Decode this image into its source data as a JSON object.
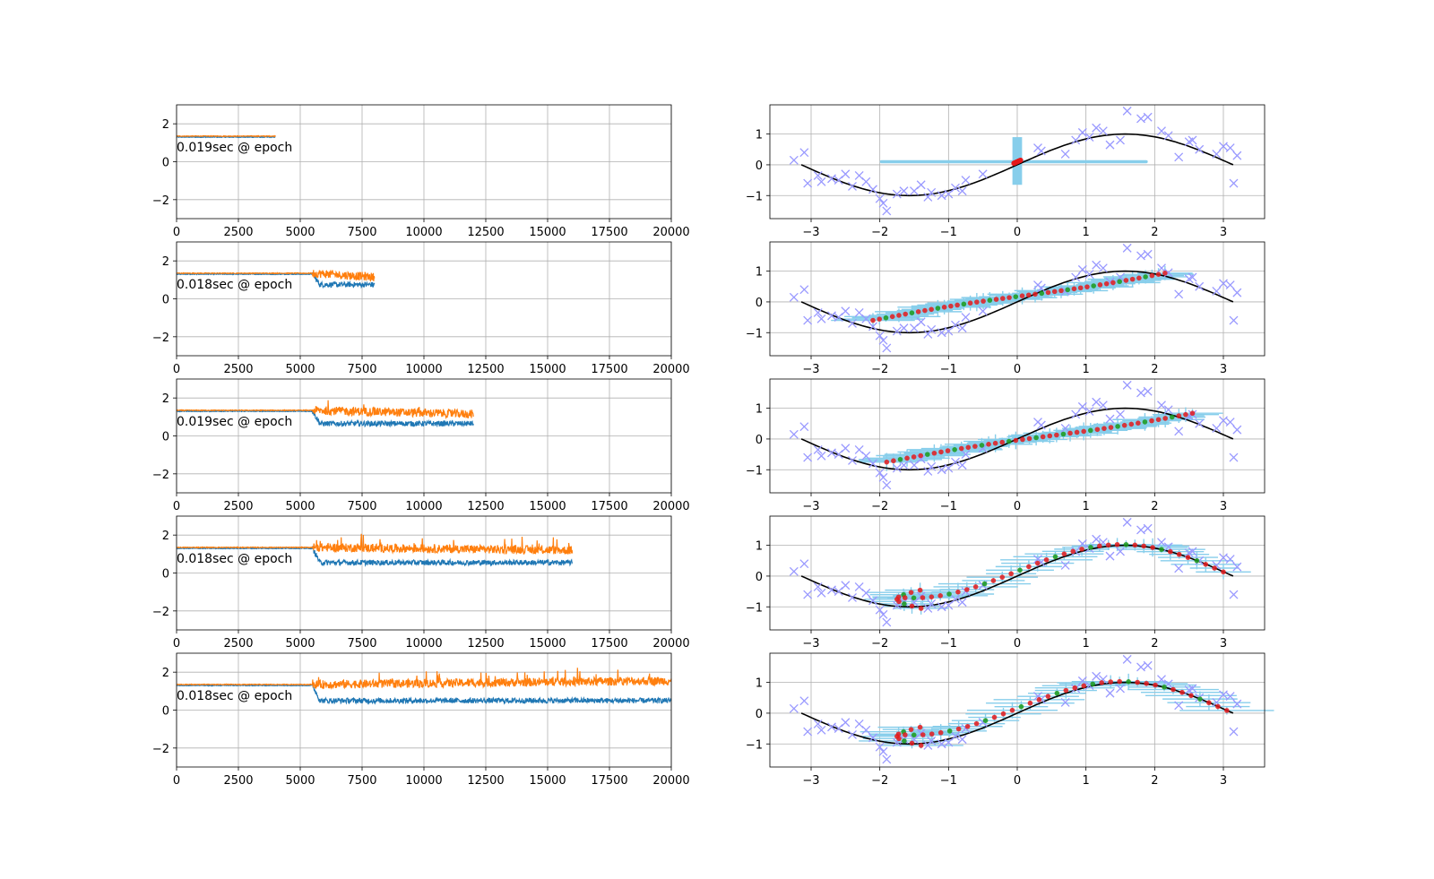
{
  "figure": {
    "layout": "5 rows x 2 columns"
  },
  "colors": {
    "train_loss": "#1f77b4",
    "val_loss": "#ff7f0e",
    "target_curve": "#000000",
    "observations": "#9999ff",
    "errorbars": "#87ceeb",
    "pred_mean": "#e41a1c",
    "pred_sample": "#1a9a1a",
    "grid": "#b0b0b0"
  },
  "chart_data": [
    {
      "type": "line",
      "panel": "loss",
      "row": 1,
      "annotation": "0.019sec @ epoch",
      "xlim": [
        0,
        20000
      ],
      "ylim": [
        -3,
        3
      ],
      "xticks": [
        0,
        2500,
        5000,
        7500,
        10000,
        12500,
        15000,
        17500,
        20000
      ],
      "yticks": [
        -2,
        0,
        2
      ],
      "grid": true,
      "epochs_shown": 4000,
      "noise_onset_epoch": 5500,
      "series": [
        {
          "color": "#1f77b4",
          "start_value": 1.3,
          "end_value": 1.3
        },
        {
          "color": "#ff7f0e",
          "start_value": 1.35,
          "end_value": 1.35
        }
      ]
    },
    {
      "type": "line",
      "panel": "loss",
      "row": 2,
      "annotation": "0.018sec @ epoch",
      "xlim": [
        0,
        20000
      ],
      "ylim": [
        -3,
        3
      ],
      "xticks": [
        0,
        2500,
        5000,
        7500,
        10000,
        12500,
        15000,
        17500,
        20000
      ],
      "yticks": [
        -2,
        0,
        2
      ],
      "grid": true,
      "epochs_shown": 8000,
      "noise_onset_epoch": 5500,
      "series": [
        {
          "color": "#1f77b4",
          "start_value": 1.3,
          "end_value": 0.75
        },
        {
          "color": "#ff7f0e",
          "start_value": 1.35,
          "end_value": 1.15
        }
      ]
    },
    {
      "type": "line",
      "panel": "loss",
      "row": 3,
      "annotation": "0.019sec @ epoch",
      "xlim": [
        0,
        20000
      ],
      "ylim": [
        -3,
        3
      ],
      "xticks": [
        0,
        2500,
        5000,
        7500,
        10000,
        12500,
        15000,
        17500,
        20000
      ],
      "yticks": [
        -2,
        0,
        2
      ],
      "grid": true,
      "epochs_shown": 12000,
      "noise_onset_epoch": 5500,
      "series": [
        {
          "color": "#1f77b4",
          "start_value": 1.3,
          "end_value": 0.65
        },
        {
          "color": "#ff7f0e",
          "start_value": 1.35,
          "end_value": 1.15
        }
      ]
    },
    {
      "type": "line",
      "panel": "loss",
      "row": 4,
      "annotation": "0.018sec @ epoch",
      "xlim": [
        0,
        20000
      ],
      "ylim": [
        -3,
        3
      ],
      "xticks": [
        0,
        2500,
        5000,
        7500,
        10000,
        12500,
        15000,
        17500,
        20000
      ],
      "yticks": [
        -2,
        0,
        2
      ],
      "grid": true,
      "epochs_shown": 16000,
      "noise_onset_epoch": 5500,
      "series": [
        {
          "color": "#1f77b4",
          "start_value": 1.3,
          "end_value": 0.55
        },
        {
          "color": "#ff7f0e",
          "start_value": 1.35,
          "end_value": 1.2
        }
      ]
    },
    {
      "type": "line",
      "panel": "loss",
      "row": 5,
      "annotation": "0.018sec @ epoch",
      "xlim": [
        0,
        20000
      ],
      "ylim": [
        -3,
        3
      ],
      "xticks": [
        0,
        2500,
        5000,
        7500,
        10000,
        12500,
        15000,
        17500,
        20000
      ],
      "yticks": [
        -2,
        0,
        2
      ],
      "grid": true,
      "epochs_shown": 20000,
      "noise_onset_epoch": 5500,
      "series": [
        {
          "color": "#1f77b4",
          "start_value": 1.3,
          "end_value": 0.5
        },
        {
          "color": "#ff7f0e",
          "start_value": 1.35,
          "end_value": 1.55
        }
      ]
    },
    {
      "type": "scatter",
      "panel": "fit",
      "xlim": [
        -3.6,
        3.6
      ],
      "ylim": [
        -1.75,
        1.95
      ],
      "xticks": [
        -3,
        -2,
        -1,
        0,
        1,
        2,
        3
      ],
      "yticks": [
        -1,
        0,
        1
      ],
      "grid": true,
      "target_curve": {
        "function": "sin(x)",
        "x_range": [
          -3.14159,
          3.14159
        ]
      },
      "observations": {
        "x": [
          -3.25,
          -3.1,
          -3.05,
          -2.9,
          -2.85,
          -2.7,
          -2.6,
          -2.5,
          -2.4,
          -2.3,
          -2.2,
          -2.1,
          -2.0,
          -1.95,
          -1.9,
          -1.75,
          -1.65,
          -1.5,
          -1.4,
          -1.3,
          -1.25,
          -1.1,
          -1.0,
          -0.9,
          -0.8,
          -0.75,
          -0.5,
          0.3,
          0.35,
          0.7,
          0.85,
          0.95,
          1.05,
          1.15,
          1.25,
          1.35,
          1.5,
          1.6,
          1.8,
          1.9,
          2.1,
          2.2,
          2.35,
          2.5,
          2.55,
          2.65,
          2.9,
          3.0,
          3.1,
          3.15,
          3.2
        ],
        "y": [
          0.15,
          0.4,
          -0.6,
          -0.35,
          -0.55,
          -0.45,
          -0.5,
          -0.3,
          -0.7,
          -0.35,
          -0.55,
          -0.8,
          -1.1,
          -1.25,
          -1.5,
          -0.95,
          -0.85,
          -0.85,
          -0.65,
          -1.05,
          -0.9,
          -1.0,
          -0.95,
          -0.75,
          -0.85,
          -0.5,
          -0.3,
          0.55,
          0.45,
          0.35,
          0.8,
          1.05,
          0.9,
          1.2,
          1.1,
          0.65,
          0.8,
          1.75,
          1.5,
          1.55,
          1.1,
          0.95,
          0.25,
          0.75,
          0.8,
          0.5,
          0.35,
          0.6,
          0.55,
          -0.6,
          0.3
        ]
      },
      "rows": [
        {
          "row": 1,
          "mean_x": [
            -0.05,
            0.05
          ],
          "mean_y": [
            0.05,
            0.15
          ]
        },
        {
          "row": 2,
          "mean_x": [
            -2.1,
            2.15
          ],
          "mean_y": [
            -0.6,
            0.95
          ]
        },
        {
          "row": 3,
          "mean_x": [
            -1.9,
            2.55
          ],
          "mean_y": [
            -0.75,
            0.85
          ]
        },
        {
          "row": 4,
          "mean_x": [
            -1.75,
            3.0
          ],
          "mean_y": [
            -1.05,
            0.3
          ]
        },
        {
          "row": 5,
          "mean_x": [
            -1.75,
            3.05
          ],
          "mean_y": [
            -1.05,
            0.3
          ]
        }
      ]
    }
  ]
}
